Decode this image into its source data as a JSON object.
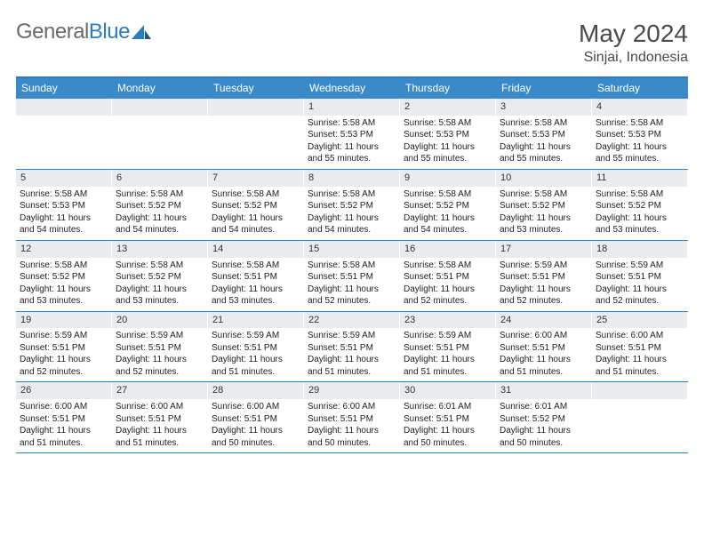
{
  "logo": {
    "text1": "General",
    "text2": "Blue"
  },
  "title": "May 2024",
  "location": "Sinjai, Indonesia",
  "dayHeaders": [
    "Sunday",
    "Monday",
    "Tuesday",
    "Wednesday",
    "Thursday",
    "Friday",
    "Saturday"
  ],
  "colors": {
    "accent": "#3a8ac9",
    "accentBorder": "#2b7cc0",
    "dayNumBg": "#e9ecef",
    "text": "#222222",
    "logoGray": "#6b6b6b",
    "logoBlue": "#2b7cc0"
  },
  "weeks": [
    [
      {
        "empty": true
      },
      {
        "empty": true
      },
      {
        "empty": true
      },
      {
        "n": "1",
        "sunrise": "Sunrise: 5:58 AM",
        "sunset": "Sunset: 5:53 PM",
        "daylight": "Daylight: 11 hours and 55 minutes."
      },
      {
        "n": "2",
        "sunrise": "Sunrise: 5:58 AM",
        "sunset": "Sunset: 5:53 PM",
        "daylight": "Daylight: 11 hours and 55 minutes."
      },
      {
        "n": "3",
        "sunrise": "Sunrise: 5:58 AM",
        "sunset": "Sunset: 5:53 PM",
        "daylight": "Daylight: 11 hours and 55 minutes."
      },
      {
        "n": "4",
        "sunrise": "Sunrise: 5:58 AM",
        "sunset": "Sunset: 5:53 PM",
        "daylight": "Daylight: 11 hours and 55 minutes."
      }
    ],
    [
      {
        "n": "5",
        "sunrise": "Sunrise: 5:58 AM",
        "sunset": "Sunset: 5:53 PM",
        "daylight": "Daylight: 11 hours and 54 minutes."
      },
      {
        "n": "6",
        "sunrise": "Sunrise: 5:58 AM",
        "sunset": "Sunset: 5:52 PM",
        "daylight": "Daylight: 11 hours and 54 minutes."
      },
      {
        "n": "7",
        "sunrise": "Sunrise: 5:58 AM",
        "sunset": "Sunset: 5:52 PM",
        "daylight": "Daylight: 11 hours and 54 minutes."
      },
      {
        "n": "8",
        "sunrise": "Sunrise: 5:58 AM",
        "sunset": "Sunset: 5:52 PM",
        "daylight": "Daylight: 11 hours and 54 minutes."
      },
      {
        "n": "9",
        "sunrise": "Sunrise: 5:58 AM",
        "sunset": "Sunset: 5:52 PM",
        "daylight": "Daylight: 11 hours and 54 minutes."
      },
      {
        "n": "10",
        "sunrise": "Sunrise: 5:58 AM",
        "sunset": "Sunset: 5:52 PM",
        "daylight": "Daylight: 11 hours and 53 minutes."
      },
      {
        "n": "11",
        "sunrise": "Sunrise: 5:58 AM",
        "sunset": "Sunset: 5:52 PM",
        "daylight": "Daylight: 11 hours and 53 minutes."
      }
    ],
    [
      {
        "n": "12",
        "sunrise": "Sunrise: 5:58 AM",
        "sunset": "Sunset: 5:52 PM",
        "daylight": "Daylight: 11 hours and 53 minutes."
      },
      {
        "n": "13",
        "sunrise": "Sunrise: 5:58 AM",
        "sunset": "Sunset: 5:52 PM",
        "daylight": "Daylight: 11 hours and 53 minutes."
      },
      {
        "n": "14",
        "sunrise": "Sunrise: 5:58 AM",
        "sunset": "Sunset: 5:51 PM",
        "daylight": "Daylight: 11 hours and 53 minutes."
      },
      {
        "n": "15",
        "sunrise": "Sunrise: 5:58 AM",
        "sunset": "Sunset: 5:51 PM",
        "daylight": "Daylight: 11 hours and 52 minutes."
      },
      {
        "n": "16",
        "sunrise": "Sunrise: 5:58 AM",
        "sunset": "Sunset: 5:51 PM",
        "daylight": "Daylight: 11 hours and 52 minutes."
      },
      {
        "n": "17",
        "sunrise": "Sunrise: 5:59 AM",
        "sunset": "Sunset: 5:51 PM",
        "daylight": "Daylight: 11 hours and 52 minutes."
      },
      {
        "n": "18",
        "sunrise": "Sunrise: 5:59 AM",
        "sunset": "Sunset: 5:51 PM",
        "daylight": "Daylight: 11 hours and 52 minutes."
      }
    ],
    [
      {
        "n": "19",
        "sunrise": "Sunrise: 5:59 AM",
        "sunset": "Sunset: 5:51 PM",
        "daylight": "Daylight: 11 hours and 52 minutes."
      },
      {
        "n": "20",
        "sunrise": "Sunrise: 5:59 AM",
        "sunset": "Sunset: 5:51 PM",
        "daylight": "Daylight: 11 hours and 52 minutes."
      },
      {
        "n": "21",
        "sunrise": "Sunrise: 5:59 AM",
        "sunset": "Sunset: 5:51 PM",
        "daylight": "Daylight: 11 hours and 51 minutes."
      },
      {
        "n": "22",
        "sunrise": "Sunrise: 5:59 AM",
        "sunset": "Sunset: 5:51 PM",
        "daylight": "Daylight: 11 hours and 51 minutes."
      },
      {
        "n": "23",
        "sunrise": "Sunrise: 5:59 AM",
        "sunset": "Sunset: 5:51 PM",
        "daylight": "Daylight: 11 hours and 51 minutes."
      },
      {
        "n": "24",
        "sunrise": "Sunrise: 6:00 AM",
        "sunset": "Sunset: 5:51 PM",
        "daylight": "Daylight: 11 hours and 51 minutes."
      },
      {
        "n": "25",
        "sunrise": "Sunrise: 6:00 AM",
        "sunset": "Sunset: 5:51 PM",
        "daylight": "Daylight: 11 hours and 51 minutes."
      }
    ],
    [
      {
        "n": "26",
        "sunrise": "Sunrise: 6:00 AM",
        "sunset": "Sunset: 5:51 PM",
        "daylight": "Daylight: 11 hours and 51 minutes."
      },
      {
        "n": "27",
        "sunrise": "Sunrise: 6:00 AM",
        "sunset": "Sunset: 5:51 PM",
        "daylight": "Daylight: 11 hours and 51 minutes."
      },
      {
        "n": "28",
        "sunrise": "Sunrise: 6:00 AM",
        "sunset": "Sunset: 5:51 PM",
        "daylight": "Daylight: 11 hours and 50 minutes."
      },
      {
        "n": "29",
        "sunrise": "Sunrise: 6:00 AM",
        "sunset": "Sunset: 5:51 PM",
        "daylight": "Daylight: 11 hours and 50 minutes."
      },
      {
        "n": "30",
        "sunrise": "Sunrise: 6:01 AM",
        "sunset": "Sunset: 5:51 PM",
        "daylight": "Daylight: 11 hours and 50 minutes."
      },
      {
        "n": "31",
        "sunrise": "Sunrise: 6:01 AM",
        "sunset": "Sunset: 5:52 PM",
        "daylight": "Daylight: 11 hours and 50 minutes."
      },
      {
        "empty": true
      }
    ]
  ]
}
